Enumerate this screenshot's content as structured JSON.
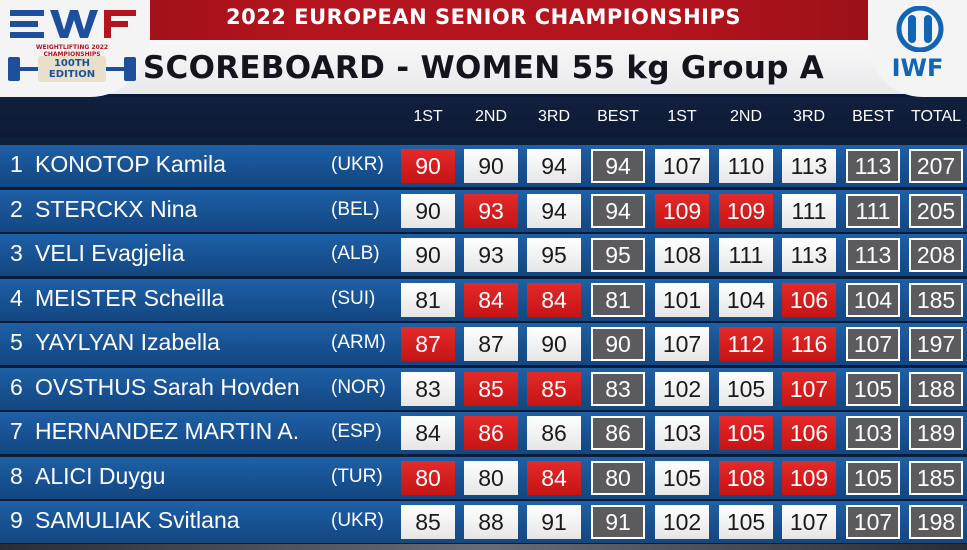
{
  "header": {
    "championship": "2022 EUROPEAN SENIOR CHAMPIONSHIPS",
    "scoreboard_title": "SCOREBOARD - WOMEN 55 kg Group A",
    "left_logo": {
      "small_text": "WEIGHTLIFTING 2022 CHAMPIONSHIPS",
      "edition": "100TH EDITION",
      "icon": "ewf-logo-icon"
    },
    "right_logo": {
      "text": "IWF",
      "icon": "iwf-rings-icon"
    }
  },
  "columns": [
    "1ST",
    "2ND",
    "3RD",
    "BEST",
    "1ST",
    "2ND",
    "3RD",
    "BEST",
    "TOTAL"
  ],
  "colors": {
    "good": "#f2f2f2",
    "fail": "#d41d1d",
    "best": "#5b5b5f",
    "row": "#175192"
  },
  "rows": [
    {
      "rank": "1",
      "name": "KONOTOP Kamila",
      "country": "(UKR)",
      "cells": [
        {
          "v": "90",
          "s": "fail"
        },
        {
          "v": "90",
          "s": "good"
        },
        {
          "v": "94",
          "s": "good"
        },
        {
          "v": "94",
          "s": "best"
        },
        {
          "v": "107",
          "s": "good"
        },
        {
          "v": "110",
          "s": "good"
        },
        {
          "v": "113",
          "s": "good"
        },
        {
          "v": "113",
          "s": "best"
        },
        {
          "v": "207",
          "s": "best"
        }
      ]
    },
    {
      "rank": "2",
      "name": "STERCKX Nina",
      "country": "(BEL)",
      "cells": [
        {
          "v": "90",
          "s": "good"
        },
        {
          "v": "93",
          "s": "fail"
        },
        {
          "v": "94",
          "s": "good"
        },
        {
          "v": "94",
          "s": "best"
        },
        {
          "v": "109",
          "s": "fail"
        },
        {
          "v": "109",
          "s": "fail"
        },
        {
          "v": "111",
          "s": "good"
        },
        {
          "v": "111",
          "s": "best"
        },
        {
          "v": "205",
          "s": "best"
        }
      ]
    },
    {
      "rank": "3",
      "name": "VELI Evagjelia",
      "country": "(ALB)",
      "cells": [
        {
          "v": "90",
          "s": "good"
        },
        {
          "v": "93",
          "s": "good"
        },
        {
          "v": "95",
          "s": "good"
        },
        {
          "v": "95",
          "s": "best"
        },
        {
          "v": "108",
          "s": "good"
        },
        {
          "v": "111",
          "s": "good"
        },
        {
          "v": "113",
          "s": "good"
        },
        {
          "v": "113",
          "s": "best"
        },
        {
          "v": "208",
          "s": "best"
        }
      ]
    },
    {
      "rank": "4",
      "name": "MEISTER Scheilla",
      "country": "(SUI)",
      "cells": [
        {
          "v": "81",
          "s": "good"
        },
        {
          "v": "84",
          "s": "fail"
        },
        {
          "v": "84",
          "s": "fail"
        },
        {
          "v": "81",
          "s": "best"
        },
        {
          "v": "101",
          "s": "good"
        },
        {
          "v": "104",
          "s": "good"
        },
        {
          "v": "106",
          "s": "fail"
        },
        {
          "v": "104",
          "s": "best"
        },
        {
          "v": "185",
          "s": "best"
        }
      ]
    },
    {
      "rank": "5",
      "name": "YAYLYAN Izabella",
      "country": "(ARM)",
      "cells": [
        {
          "v": "87",
          "s": "fail"
        },
        {
          "v": "87",
          "s": "good"
        },
        {
          "v": "90",
          "s": "good"
        },
        {
          "v": "90",
          "s": "best"
        },
        {
          "v": "107",
          "s": "good"
        },
        {
          "v": "112",
          "s": "fail"
        },
        {
          "v": "116",
          "s": "fail"
        },
        {
          "v": "107",
          "s": "best"
        },
        {
          "v": "197",
          "s": "best"
        }
      ]
    },
    {
      "rank": "6",
      "name": "OVSTHUS Sarah Hovden",
      "country": "(NOR)",
      "cells": [
        {
          "v": "83",
          "s": "good"
        },
        {
          "v": "85",
          "s": "fail"
        },
        {
          "v": "85",
          "s": "fail"
        },
        {
          "v": "83",
          "s": "best"
        },
        {
          "v": "102",
          "s": "good"
        },
        {
          "v": "105",
          "s": "good"
        },
        {
          "v": "107",
          "s": "fail"
        },
        {
          "v": "105",
          "s": "best"
        },
        {
          "v": "188",
          "s": "best"
        }
      ]
    },
    {
      "rank": "7",
      "name": "HERNANDEZ MARTIN A.",
      "country": "(ESP)",
      "cells": [
        {
          "v": "84",
          "s": "good"
        },
        {
          "v": "86",
          "s": "fail"
        },
        {
          "v": "86",
          "s": "good"
        },
        {
          "v": "86",
          "s": "best"
        },
        {
          "v": "103",
          "s": "good"
        },
        {
          "v": "105",
          "s": "fail"
        },
        {
          "v": "106",
          "s": "fail"
        },
        {
          "v": "103",
          "s": "best"
        },
        {
          "v": "189",
          "s": "best"
        }
      ]
    },
    {
      "rank": "8",
      "name": "ALICI Duygu",
      "country": "(TUR)",
      "cells": [
        {
          "v": "80",
          "s": "fail"
        },
        {
          "v": "80",
          "s": "good"
        },
        {
          "v": "84",
          "s": "fail"
        },
        {
          "v": "80",
          "s": "best"
        },
        {
          "v": "105",
          "s": "good"
        },
        {
          "v": "108",
          "s": "fail"
        },
        {
          "v": "109",
          "s": "fail"
        },
        {
          "v": "105",
          "s": "best"
        },
        {
          "v": "185",
          "s": "best"
        }
      ]
    },
    {
      "rank": "9",
      "name": "SAMULIAK Svitlana",
      "country": "(UKR)",
      "cells": [
        {
          "v": "85",
          "s": "good"
        },
        {
          "v": "88",
          "s": "good"
        },
        {
          "v": "91",
          "s": "good"
        },
        {
          "v": "91",
          "s": "best"
        },
        {
          "v": "102",
          "s": "good"
        },
        {
          "v": "105",
          "s": "good"
        },
        {
          "v": "107",
          "s": "good"
        },
        {
          "v": "107",
          "s": "best"
        },
        {
          "v": "198",
          "s": "best"
        }
      ]
    }
  ]
}
